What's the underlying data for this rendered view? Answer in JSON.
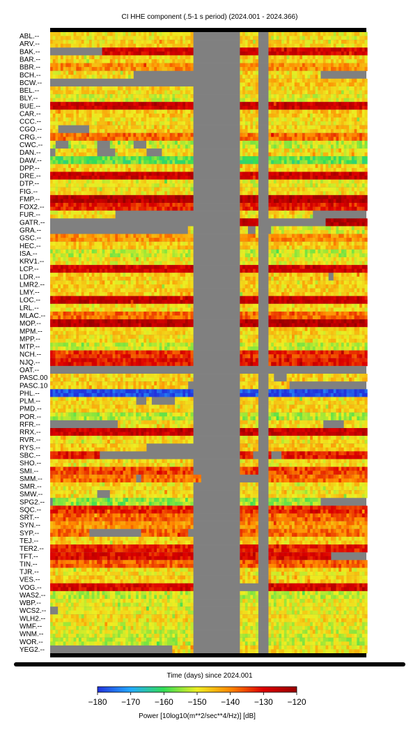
{
  "chart_data": {
    "type": "heatmap",
    "title": "CI HHE component (.5-1 s period) (2024.001 - 2024.366)",
    "xlabel": "Time (days) since 2024.001",
    "colorbar": {
      "label": "Power [10log10(m**2/sec**4/Hz)] [dB]",
      "min": -180,
      "max": -120,
      "ticks": [
        -180,
        -170,
        -160,
        -150,
        -140,
        -130,
        -120
      ],
      "colors": [
        "#2233dd",
        "#22aaff",
        "#33dd55",
        "#eeee22",
        "#ff8800",
        "#dd0000",
        "#990000"
      ]
    },
    "no_data_color": "#808080",
    "x_range_days": [
      0,
      365
    ],
    "stations": [
      {
        "label": "ABL.--",
        "base": -148,
        "gaps": [
          [
            166,
            218
          ],
          [
            241,
            252
          ]
        ]
      },
      {
        "label": "ARV.--",
        "base": -147,
        "gaps": [
          [
            166,
            218
          ],
          [
            241,
            252
          ]
        ]
      },
      {
        "label": "BAK.--",
        "base": -128,
        "gaps": [
          [
            0,
            60
          ],
          [
            166,
            218
          ],
          [
            241,
            252
          ]
        ]
      },
      {
        "label": "BAR.--",
        "base": -147,
        "gaps": [
          [
            166,
            218
          ],
          [
            241,
            252
          ]
        ]
      },
      {
        "label": "BBR.--",
        "base": -141,
        "gaps": [
          [
            166,
            218
          ],
          [
            241,
            252
          ]
        ]
      },
      {
        "label": "BCH.--",
        "base": -148,
        "gaps": [
          [
            96,
            218
          ],
          [
            241,
            252
          ],
          [
            313,
            365
          ]
        ]
      },
      {
        "label": "BCW.--",
        "base": -146,
        "gaps": [
          [
            0,
            218
          ],
          [
            241,
            252
          ]
        ]
      },
      {
        "label": "BEL.--",
        "base": -148,
        "gaps": [
          [
            166,
            218
          ],
          [
            241,
            252
          ]
        ]
      },
      {
        "label": "BLY.--",
        "base": -150,
        "gaps": [
          [
            166,
            218
          ],
          [
            241,
            252
          ]
        ]
      },
      {
        "label": "BUE.--",
        "base": -127,
        "gaps": [
          [
            166,
            218
          ],
          [
            241,
            252
          ]
        ]
      },
      {
        "label": "CAR.--",
        "base": -146,
        "gaps": [
          [
            166,
            218
          ],
          [
            241,
            252
          ]
        ]
      },
      {
        "label": "CCC.--",
        "base": -148,
        "gaps": [
          [
            166,
            218
          ],
          [
            241,
            252
          ]
        ]
      },
      {
        "label": "CGO.--",
        "base": -147,
        "gaps": [
          [
            8,
            46
          ],
          [
            166,
            218
          ],
          [
            241,
            252
          ]
        ]
      },
      {
        "label": "CRG.--",
        "base": -138,
        "gaps": [
          [
            166,
            218
          ],
          [
            241,
            252
          ]
        ]
      },
      {
        "label": "CWC.--",
        "base": -152,
        "gaps": [
          [
            5,
            20
          ],
          [
            55,
            70
          ],
          [
            95,
            110
          ],
          [
            166,
            218
          ],
          [
            241,
            252
          ]
        ]
      },
      {
        "label": "DAN.--",
        "base": -148,
        "gaps": [
          [
            0,
            5
          ],
          [
            55,
            75
          ],
          [
            110,
            130
          ],
          [
            166,
            218
          ],
          [
            241,
            252
          ]
        ]
      },
      {
        "label": "DAW.--",
        "base": -158,
        "gaps": [
          [
            166,
            218
          ],
          [
            241,
            252
          ]
        ]
      },
      {
        "label": "DPP.--",
        "base": -147,
        "gaps": [
          [
            166,
            218
          ],
          [
            241,
            252
          ]
        ]
      },
      {
        "label": "DRE.--",
        "base": -127,
        "gaps": [
          [
            166,
            218
          ],
          [
            241,
            252
          ]
        ]
      },
      {
        "label": "DTP.--",
        "base": -150,
        "gaps": [
          [
            166,
            218
          ],
          [
            241,
            252
          ]
        ]
      },
      {
        "label": "FIG.--",
        "base": -148,
        "gaps": [
          [
            166,
            218
          ],
          [
            241,
            252
          ]
        ]
      },
      {
        "label": "FMP.--",
        "base": -124,
        "gaps": [
          [
            166,
            218
          ],
          [
            241,
            252
          ]
        ]
      },
      {
        "label": "FOX2.--",
        "base": -132,
        "gaps": [
          [
            166,
            218
          ],
          [
            241,
            252
          ]
        ]
      },
      {
        "label": "FUR.--",
        "base": -148,
        "gaps": [
          [
            76,
            218
          ],
          [
            241,
            252
          ],
          [
            304,
            365
          ]
        ]
      },
      {
        "label": "GATR.--",
        "base": -124,
        "gaps": [
          [
            0,
            218
          ],
          [
            241,
            252
          ],
          [
            241,
            318
          ]
        ]
      },
      {
        "label": "GRA.--",
        "base": -150,
        "gaps": [
          [
            0,
            158
          ],
          [
            166,
            218
          ],
          [
            227,
            236
          ],
          [
            241,
            255
          ]
        ]
      },
      {
        "label": "GSC.--",
        "base": -141,
        "gaps": [
          [
            166,
            218
          ],
          [
            241,
            252
          ]
        ]
      },
      {
        "label": "HEC.--",
        "base": -146,
        "gaps": [
          [
            166,
            218
          ],
          [
            241,
            252
          ]
        ]
      },
      {
        "label": "ISA.--",
        "base": -152,
        "gaps": [
          [
            166,
            218
          ],
          [
            241,
            252
          ]
        ]
      },
      {
        "label": "KRV1.--",
        "base": -149,
        "gaps": [
          [
            166,
            218
          ],
          [
            241,
            252
          ]
        ]
      },
      {
        "label": "LCP.--",
        "base": -128,
        "gaps": [
          [
            166,
            218
          ],
          [
            241,
            252
          ]
        ]
      },
      {
        "label": "LDR.--",
        "base": -146,
        "gaps": [
          [
            166,
            218
          ],
          [
            241,
            252
          ],
          [
            320,
            328
          ]
        ]
      },
      {
        "label": "LMR2.--",
        "base": -147,
        "gaps": [
          [
            166,
            218
          ],
          [
            241,
            252
          ]
        ]
      },
      {
        "label": "LMY.--",
        "base": -147,
        "gaps": [
          [
            166,
            218
          ],
          [
            241,
            252
          ]
        ]
      },
      {
        "label": "LOC.--",
        "base": -126,
        "gaps": [
          [
            166,
            218
          ],
          [
            241,
            252
          ]
        ]
      },
      {
        "label": "LRL.--",
        "base": -148,
        "gaps": [
          [
            166,
            218
          ],
          [
            241,
            252
          ]
        ]
      },
      {
        "label": "MLAC.--",
        "base": -138,
        "gaps": [
          [
            166,
            218
          ],
          [
            241,
            252
          ]
        ]
      },
      {
        "label": "MOP.--",
        "base": -124,
        "gaps": [
          [
            166,
            218
          ],
          [
            241,
            252
          ]
        ]
      },
      {
        "label": "MPM.--",
        "base": -147,
        "gaps": [
          [
            166,
            218
          ],
          [
            241,
            252
          ]
        ]
      },
      {
        "label": "MPP.--",
        "base": -148,
        "gaps": [
          [
            166,
            218
          ],
          [
            241,
            252
          ]
        ]
      },
      {
        "label": "MTP.--",
        "base": -152,
        "gaps": [
          [
            166,
            218
          ],
          [
            241,
            252
          ]
        ]
      },
      {
        "label": "NCH.--",
        "base": -133,
        "gaps": [
          [
            166,
            218
          ],
          [
            241,
            252
          ]
        ]
      },
      {
        "label": "NJQ.--",
        "base": -131,
        "gaps": [
          [
            166,
            218
          ],
          [
            241,
            252
          ]
        ]
      },
      {
        "label": "OAT.--",
        "base": -146,
        "gaps": [
          [
            0,
            365
          ]
        ]
      },
      {
        "label": "PASC.00",
        "base": -147,
        "gaps": [
          [
            166,
            218
          ],
          [
            241,
            252
          ],
          [
            259,
            274
          ]
        ]
      },
      {
        "label": "PASC.10",
        "base": -146,
        "gaps": [
          [
            160,
            218
          ],
          [
            241,
            252
          ],
          [
            277,
            365
          ]
        ]
      },
      {
        "label": "PHL.--",
        "base": -178,
        "gaps": [
          [
            166,
            218
          ],
          [
            241,
            252
          ]
        ]
      },
      {
        "label": "PLM.--",
        "base": -148,
        "gaps": [
          [
            98,
            110
          ],
          [
            116,
            145
          ],
          [
            166,
            218
          ],
          [
            241,
            252
          ]
        ]
      },
      {
        "label": "PMD.--",
        "base": -147,
        "gaps": [
          [
            166,
            218
          ],
          [
            241,
            252
          ]
        ]
      },
      {
        "label": "POR.--",
        "base": -153,
        "gaps": [
          [
            166,
            218
          ],
          [
            241,
            252
          ]
        ]
      },
      {
        "label": "RFR.--",
        "base": -148,
        "gaps": [
          [
            0,
            78
          ],
          [
            166,
            218
          ],
          [
            241,
            252
          ],
          [
            316,
            338
          ]
        ]
      },
      {
        "label": "RRX.--",
        "base": -127,
        "gaps": [
          [
            166,
            218
          ],
          [
            241,
            252
          ]
        ]
      },
      {
        "label": "RVR.--",
        "base": -148,
        "gaps": [
          [
            166,
            218
          ],
          [
            241,
            252
          ]
        ]
      },
      {
        "label": "RYS.--",
        "base": -146,
        "gaps": [
          [
            112,
            218
          ],
          [
            241,
            252
          ]
        ]
      },
      {
        "label": "SBC.--",
        "base": -131,
        "gaps": [
          [
            56,
            218
          ],
          [
            241,
            252
          ],
          [
            235,
            250
          ],
          [
            255,
            268
          ]
        ]
      },
      {
        "label": "SHO.--",
        "base": -148,
        "gaps": [
          [
            166,
            218
          ],
          [
            241,
            252
          ]
        ]
      },
      {
        "label": "SMI.--",
        "base": -135,
        "gaps": [
          [
            166,
            218
          ],
          [
            241,
            252
          ]
        ]
      },
      {
        "label": "SMM.--",
        "base": -138,
        "gaps": [
          [
            100,
            106
          ],
          [
            174,
            218
          ],
          [
            241,
            252
          ],
          [
            218,
            241
          ]
        ]
      },
      {
        "label": "SMR.--",
        "base": -148,
        "gaps": [
          [
            166,
            218
          ],
          [
            241,
            252
          ]
        ]
      },
      {
        "label": "SMW.--",
        "base": -148,
        "gaps": [
          [
            54,
            70
          ],
          [
            166,
            218
          ],
          [
            241,
            252
          ]
        ]
      },
      {
        "label": "SPG2.--",
        "base": -155,
        "gaps": [
          [
            0,
            4
          ],
          [
            166,
            218
          ],
          [
            241,
            252
          ],
          [
            313,
            365
          ]
        ]
      },
      {
        "label": "SQC.--",
        "base": -133,
        "gaps": [
          [
            166,
            218
          ],
          [
            241,
            252
          ]
        ]
      },
      {
        "label": "SRT.--",
        "base": -137,
        "gaps": [
          [
            166,
            218
          ],
          [
            241,
            252
          ]
        ]
      },
      {
        "label": "SYN.--",
        "base": -141,
        "gaps": [
          [
            166,
            218
          ],
          [
            241,
            252
          ]
        ]
      },
      {
        "label": "SYP.--",
        "base": -138,
        "gaps": [
          [
            46,
            105
          ],
          [
            160,
            218
          ],
          [
            241,
            252
          ]
        ]
      },
      {
        "label": "TEJ.--",
        "base": -147,
        "gaps": [
          [
            166,
            218
          ],
          [
            241,
            252
          ]
        ]
      },
      {
        "label": "TER2.--",
        "base": -132,
        "gaps": [
          [
            166,
            218
          ],
          [
            241,
            252
          ]
        ]
      },
      {
        "label": "TFT.--",
        "base": -130,
        "gaps": [
          [
            166,
            218
          ],
          [
            241,
            252
          ],
          [
            323,
            365
          ]
        ]
      },
      {
        "label": "TIN.--",
        "base": -137,
        "gaps": [
          [
            166,
            218
          ],
          [
            241,
            252
          ]
        ]
      },
      {
        "label": "TJR.--",
        "base": -148,
        "gaps": [
          [
            166,
            218
          ],
          [
            241,
            252
          ]
        ]
      },
      {
        "label": "VES.--",
        "base": -147,
        "gaps": [
          [
            166,
            218
          ],
          [
            241,
            252
          ]
        ]
      },
      {
        "label": "VOG.--",
        "base": -129,
        "gaps": [
          [
            166,
            218
          ],
          [
            241,
            252
          ],
          [
            218,
            241
          ]
        ]
      },
      {
        "label": "WAS2.--",
        "base": -152,
        "gaps": [
          [
            166,
            218
          ],
          [
            241,
            252
          ]
        ]
      },
      {
        "label": "WBP.--",
        "base": -150,
        "gaps": [
          [
            166,
            218
          ],
          [
            241,
            252
          ]
        ]
      },
      {
        "label": "WCS2.--",
        "base": -150,
        "gaps": [
          [
            0,
            10
          ],
          [
            166,
            218
          ],
          [
            241,
            252
          ]
        ]
      },
      {
        "label": "WLH2.--",
        "base": -148,
        "gaps": [
          [
            166,
            218
          ],
          [
            241,
            252
          ]
        ]
      },
      {
        "label": "WMF.--",
        "base": -150,
        "gaps": [
          [
            166,
            218
          ],
          [
            241,
            252
          ]
        ]
      },
      {
        "label": "WNM.--",
        "base": -151,
        "gaps": [
          [
            166,
            218
          ],
          [
            241,
            252
          ]
        ]
      },
      {
        "label": "WOR.--",
        "base": -152,
        "gaps": [
          [
            166,
            218
          ],
          [
            241,
            252
          ]
        ]
      },
      {
        "label": "YEG2.--",
        "base": -148,
        "gaps": [
          [
            0,
            140
          ],
          [
            166,
            218
          ],
          [
            241,
            252
          ]
        ]
      }
    ]
  }
}
